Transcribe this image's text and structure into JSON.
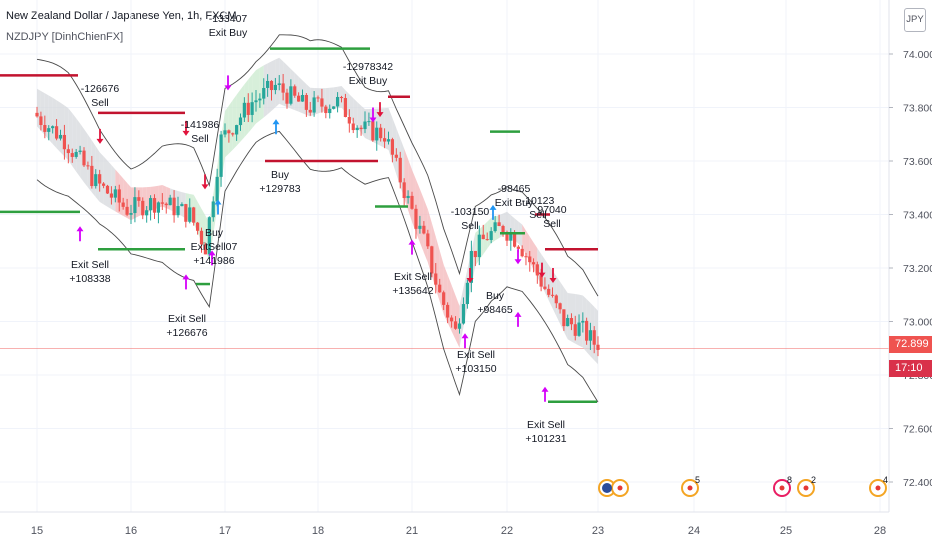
{
  "header": {
    "title": "New Zealand Dollar / Japanese Yen, 1h, FXCM",
    "indicator": "NZDJPY [DinhChienFX]",
    "currency_button": "JPY"
  },
  "price_badges": {
    "last_price": "72.899",
    "countdown": "17:10",
    "last_color": "#ef5350",
    "countdown_color": "#d9314a"
  },
  "colors": {
    "up": "#26a69a",
    "down": "#ef5350",
    "envelope": "#4a4a4a",
    "channel_gray": "#d6d8dc",
    "channel_red": "#f3b7b9",
    "channel_green": "#c9e9cd",
    "signal_magenta": "#d500f9",
    "signal_red": "#e0143c",
    "signal_blue": "#2196f3",
    "level_green": "#2e9f3f",
    "level_red": "#c2132f"
  },
  "chart_data": {
    "type": "candlestick",
    "symbol": "NZDJPY",
    "timeframe": "1h",
    "x_axis_ticks": [
      "15",
      "16",
      "17",
      "18",
      "21",
      "22",
      "23",
      "24",
      "25",
      "28"
    ],
    "y_axis_ticks": [
      "74.000",
      "73.800",
      "73.600",
      "73.400",
      "73.200",
      "73.000",
      "72.800",
      "72.600",
      "72.400"
    ],
    "ylim": [
      72.32,
      74.12
    ],
    "last_price": 72.899,
    "annotations": [
      {
        "lines": [
          "-126676",
          "Sell"
        ],
        "date": "15",
        "kind": "sell"
      },
      {
        "lines": [
          "Exit Sell",
          "+108338"
        ],
        "date": "15",
        "kind": "exit-sell"
      },
      {
        "lines": [
          "-141986",
          "Sell"
        ],
        "date": "16",
        "kind": "sell"
      },
      {
        "lines": [
          "Exit Sell",
          "+126676"
        ],
        "date": "16",
        "kind": "exit-sell"
      },
      {
        "lines": [
          "-133407",
          "Exit Buy"
        ],
        "date": "17",
        "kind": "exit-buy"
      },
      {
        "lines": [
          "Buy",
          "ExitSell07",
          "+141986"
        ],
        "date": "17",
        "kind": "buy"
      },
      {
        "lines": [
          "Buy",
          "+129783"
        ],
        "date": "17",
        "kind": "buy"
      },
      {
        "lines": [
          "-12978342",
          "Exit Buy"
        ],
        "date": "18",
        "kind": "exit-buy"
      },
      {
        "lines": [
          "Exit Sell",
          "+135642"
        ],
        "date": "21",
        "kind": "exit-sell"
      },
      {
        "lines": [
          "-103150",
          "Sell"
        ],
        "date": "21",
        "kind": "sell"
      },
      {
        "lines": [
          "Exit Sell",
          "+103150"
        ],
        "date": "21",
        "kind": "exit-sell"
      },
      {
        "lines": [
          "-98465",
          "Exit Buy"
        ],
        "date": "22",
        "kind": "exit-buy"
      },
      {
        "lines": [
          "Buy",
          "+98465"
        ],
        "date": "22",
        "kind": "buy"
      },
      {
        "lines": [
          "-10123",
          "Sell"
        ],
        "date": "22",
        "kind": "sell"
      },
      {
        "lines": [
          "97040",
          "Sell"
        ],
        "date": "22",
        "kind": "sell"
      },
      {
        "lines": [
          "Exit Sell",
          "+101231"
        ],
        "date": "22",
        "kind": "exit-sell"
      }
    ],
    "event_markers": [
      {
        "date": "23",
        "label": ""
      },
      {
        "date": "24",
        "label": "5"
      },
      {
        "date": "25",
        "label": "8"
      },
      {
        "date": "25",
        "label": "2"
      },
      {
        "date": "28",
        "label": "4"
      }
    ]
  }
}
